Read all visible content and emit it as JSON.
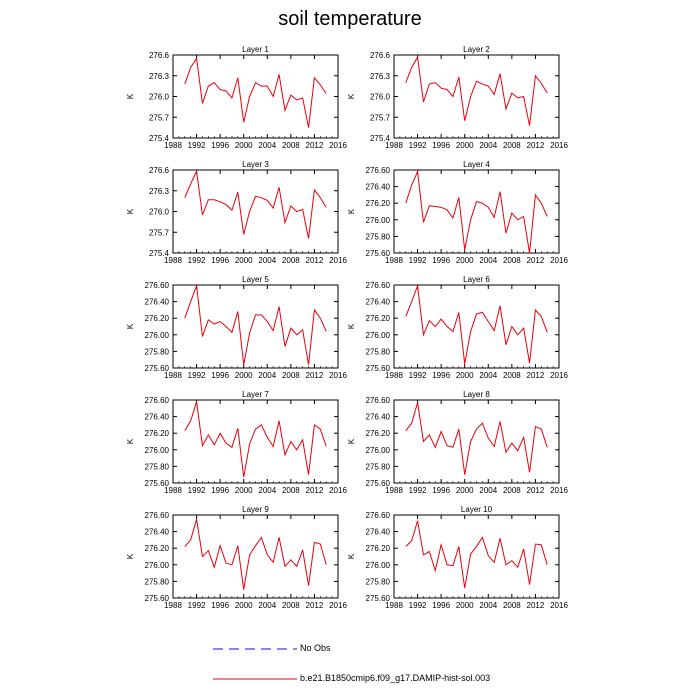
{
  "title": "soil temperature",
  "colors": {
    "series": "#e8000b",
    "obs": "#1010c8",
    "axis": "#000000"
  },
  "legend": {
    "obs_label": "No Obs",
    "model_label": "b.e21.B1850cmip6.f09_g17.DAMIP-hist-sol.003"
  },
  "chart_data": [
    {
      "type": "line",
      "title": "Layer 1",
      "ylabel": "K",
      "xlim": [
        1988,
        2016
      ],
      "ylim": [
        275.4,
        276.6
      ],
      "xticks": [
        1988,
        1992,
        1996,
        2000,
        2004,
        2008,
        2012,
        2016
      ],
      "yticks": [
        "275.4",
        "275.7",
        "276.0",
        "276.3",
        "276.6"
      ],
      "x": [
        1990,
        1991,
        1992,
        1993,
        1994,
        1995,
        1996,
        1997,
        1998,
        1999,
        2000,
        2001,
        2002,
        2003,
        2004,
        2005,
        2006,
        2007,
        2008,
        2009,
        2010,
        2011,
        2012,
        2013,
        2014
      ],
      "series": [
        {
          "values": [
            276.18,
            276.42,
            276.55,
            275.9,
            276.15,
            276.2,
            276.1,
            276.08,
            275.98,
            276.27,
            275.63,
            276.0,
            276.2,
            276.15,
            276.15,
            276.0,
            276.32,
            275.8,
            276.02,
            275.95,
            275.98,
            275.55,
            276.27,
            276.17,
            276.04
          ]
        }
      ]
    },
    {
      "type": "line",
      "title": "Layer 2",
      "ylabel": "K",
      "xlim": [
        1988,
        2016
      ],
      "ylim": [
        275.4,
        276.6
      ],
      "xticks": [
        1988,
        1992,
        1996,
        2000,
        2004,
        2008,
        2012,
        2016
      ],
      "yticks": [
        "275.4",
        "275.7",
        "276.0",
        "276.3",
        "276.6"
      ],
      "x": [
        1990,
        1991,
        1992,
        1993,
        1994,
        1995,
        1996,
        1997,
        1998,
        1999,
        2000,
        2001,
        2002,
        2003,
        2004,
        2005,
        2006,
        2007,
        2008,
        2009,
        2010,
        2011,
        2012,
        2013,
        2014
      ],
      "series": [
        {
          "values": [
            276.2,
            276.42,
            276.57,
            275.92,
            276.18,
            276.2,
            276.12,
            276.1,
            276.0,
            276.28,
            275.65,
            276.0,
            276.22,
            276.18,
            276.15,
            276.03,
            276.33,
            275.82,
            276.05,
            275.98,
            276.0,
            275.58,
            276.3,
            276.19,
            276.05
          ]
        }
      ]
    },
    {
      "type": "line",
      "title": "Layer 3",
      "ylabel": "K",
      "xlim": [
        1988,
        2016
      ],
      "ylim": [
        275.4,
        276.6
      ],
      "xticks": [
        1988,
        1992,
        1996,
        2000,
        2004,
        2008,
        2012,
        2016
      ],
      "yticks": [
        "275.4",
        "275.7",
        "276.0",
        "276.3",
        "276.6"
      ],
      "x": [
        1990,
        1991,
        1992,
        1993,
        1994,
        1995,
        1996,
        1997,
        1998,
        1999,
        2000,
        2001,
        2002,
        2003,
        2004,
        2005,
        2006,
        2007,
        2008,
        2009,
        2010,
        2011,
        2012,
        2013,
        2014
      ],
      "series": [
        {
          "values": [
            276.2,
            276.4,
            276.58,
            275.95,
            276.17,
            276.17,
            276.14,
            276.1,
            276.02,
            276.28,
            275.67,
            276.0,
            276.22,
            276.2,
            276.16,
            276.05,
            276.35,
            275.84,
            276.08,
            276.0,
            276.03,
            275.61,
            276.31,
            276.2,
            276.06
          ]
        }
      ]
    },
    {
      "type": "line",
      "title": "Layer 4",
      "ylabel": "K",
      "xlim": [
        1988,
        2016
      ],
      "ylim": [
        275.6,
        276.6
      ],
      "xticks": [
        1988,
        1992,
        1996,
        2000,
        2004,
        2008,
        2012,
        2016
      ],
      "yticks": [
        "275.60",
        "275.80",
        "276.00",
        "276.20",
        "276.40",
        "276.60"
      ],
      "x": [
        1990,
        1991,
        1992,
        1993,
        1994,
        1995,
        1996,
        1997,
        1998,
        1999,
        2000,
        2001,
        2002,
        2003,
        2004,
        2005,
        2006,
        2007,
        2008,
        2009,
        2010,
        2011,
        2012,
        2013,
        2014
      ],
      "series": [
        {
          "values": [
            276.2,
            276.42,
            276.58,
            275.97,
            276.17,
            276.16,
            276.15,
            276.12,
            276.02,
            276.27,
            275.64,
            276.0,
            276.22,
            276.2,
            276.15,
            276.03,
            276.34,
            275.84,
            276.08,
            276.0,
            276.04,
            275.6,
            276.3,
            276.2,
            276.04
          ]
        }
      ]
    },
    {
      "type": "line",
      "title": "Layer 5",
      "ylabel": "K",
      "xlim": [
        1988,
        2016
      ],
      "ylim": [
        275.6,
        276.6
      ],
      "xticks": [
        1988,
        1992,
        1996,
        2000,
        2004,
        2008,
        2012,
        2016
      ],
      "yticks": [
        "275.60",
        "275.80",
        "276.00",
        "276.20",
        "276.40",
        "276.60"
      ],
      "x": [
        1990,
        1991,
        1992,
        1993,
        1994,
        1995,
        1996,
        1997,
        1998,
        1999,
        2000,
        2001,
        2002,
        2003,
        2004,
        2005,
        2006,
        2007,
        2008,
        2009,
        2010,
        2011,
        2012,
        2013,
        2014
      ],
      "series": [
        {
          "values": [
            276.2,
            276.4,
            276.59,
            275.98,
            276.18,
            276.13,
            276.16,
            276.1,
            276.03,
            276.28,
            275.64,
            276.02,
            276.24,
            276.24,
            276.16,
            276.05,
            276.34,
            275.86,
            276.08,
            276.0,
            276.06,
            275.64,
            276.3,
            276.2,
            276.04
          ]
        }
      ]
    },
    {
      "type": "line",
      "title": "Layer 6",
      "ylabel": "K",
      "xlim": [
        1988,
        2016
      ],
      "ylim": [
        275.6,
        276.6
      ],
      "xticks": [
        1988,
        1992,
        1996,
        2000,
        2004,
        2008,
        2012,
        2016
      ],
      "yticks": [
        "275.60",
        "275.80",
        "276.00",
        "276.20",
        "276.40",
        "276.60"
      ],
      "x": [
        1990,
        1991,
        1992,
        1993,
        1994,
        1995,
        1996,
        1997,
        1998,
        1999,
        2000,
        2001,
        2002,
        2003,
        2004,
        2005,
        2006,
        2007,
        2008,
        2009,
        2010,
        2011,
        2012,
        2013,
        2014
      ],
      "series": [
        {
          "values": [
            276.22,
            276.4,
            276.59,
            276.0,
            276.17,
            276.1,
            276.19,
            276.1,
            276.04,
            276.27,
            275.65,
            276.04,
            276.25,
            276.27,
            276.16,
            276.05,
            276.35,
            275.88,
            276.1,
            276.0,
            276.08,
            275.66,
            276.3,
            276.22,
            276.03
          ]
        }
      ]
    },
    {
      "type": "line",
      "title": "Layer 7",
      "ylabel": "K",
      "xlim": [
        1988,
        2016
      ],
      "ylim": [
        275.6,
        276.6
      ],
      "xticks": [
        1988,
        1992,
        1996,
        2000,
        2004,
        2008,
        2012,
        2016
      ],
      "yticks": [
        "275.60",
        "275.80",
        "276.00",
        "276.20",
        "276.40",
        "276.60"
      ],
      "x": [
        1990,
        1991,
        1992,
        1993,
        1994,
        1995,
        1996,
        1997,
        1998,
        1999,
        2000,
        2001,
        2002,
        2003,
        2004,
        2005,
        2006,
        2007,
        2008,
        2009,
        2010,
        2011,
        2012,
        2013,
        2014
      ],
      "series": [
        {
          "values": [
            276.23,
            276.35,
            276.58,
            276.05,
            276.18,
            276.06,
            276.2,
            276.08,
            276.03,
            276.26,
            275.67,
            276.07,
            276.25,
            276.3,
            276.15,
            276.04,
            276.35,
            275.94,
            276.1,
            276.0,
            276.12,
            275.7,
            276.3,
            276.25,
            276.04
          ]
        }
      ]
    },
    {
      "type": "line",
      "title": "Layer 8",
      "ylabel": "K",
      "xlim": [
        1988,
        2016
      ],
      "ylim": [
        275.6,
        276.6
      ],
      "xticks": [
        1988,
        1992,
        1996,
        2000,
        2004,
        2008,
        2012,
        2016
      ],
      "yticks": [
        "275.60",
        "275.80",
        "276.00",
        "276.20",
        "276.40",
        "276.60"
      ],
      "x": [
        1990,
        1991,
        1992,
        1993,
        1994,
        1995,
        1996,
        1997,
        1998,
        1999,
        2000,
        2001,
        2002,
        2003,
        2004,
        2005,
        2006,
        2007,
        2008,
        2009,
        2010,
        2011,
        2012,
        2013,
        2014
      ],
      "series": [
        {
          "values": [
            276.23,
            276.32,
            276.57,
            276.1,
            276.18,
            276.03,
            276.22,
            276.05,
            276.03,
            276.25,
            275.7,
            276.1,
            276.25,
            276.32,
            276.14,
            276.04,
            276.34,
            275.97,
            276.08,
            275.99,
            276.15,
            275.73,
            276.28,
            276.25,
            276.03
          ]
        }
      ]
    },
    {
      "type": "line",
      "title": "Layer 9",
      "ylabel": "K",
      "xlim": [
        1988,
        2016
      ],
      "ylim": [
        275.6,
        276.6
      ],
      "xticks": [
        1988,
        1992,
        1996,
        2000,
        2004,
        2008,
        2012,
        2016
      ],
      "yticks": [
        "275.60",
        "275.80",
        "276.00",
        "276.20",
        "276.40",
        "276.60"
      ],
      "x": [
        1990,
        1991,
        1992,
        1993,
        1994,
        1995,
        1996,
        1997,
        1998,
        1999,
        2000,
        2001,
        2002,
        2003,
        2004,
        2005,
        2006,
        2007,
        2008,
        2009,
        2010,
        2011,
        2012,
        2013,
        2014
      ],
      "series": [
        {
          "values": [
            276.22,
            276.3,
            276.55,
            276.1,
            276.17,
            275.97,
            276.23,
            276.02,
            276.0,
            276.23,
            275.7,
            276.12,
            276.23,
            276.33,
            276.12,
            276.03,
            276.33,
            275.98,
            276.06,
            275.98,
            276.18,
            275.75,
            276.27,
            276.25,
            276.0
          ]
        }
      ]
    },
    {
      "type": "line",
      "title": "Layer 10",
      "ylabel": "K",
      "xlim": [
        1988,
        2016
      ],
      "ylim": [
        275.6,
        276.6
      ],
      "xticks": [
        1988,
        1992,
        1996,
        2000,
        2004,
        2008,
        2012,
        2016
      ],
      "yticks": [
        "275.60",
        "275.80",
        "276.00",
        "276.20",
        "276.40",
        "276.60"
      ],
      "x": [
        1990,
        1991,
        1992,
        1993,
        1994,
        1995,
        1996,
        1997,
        1998,
        1999,
        2000,
        2001,
        2002,
        2003,
        2004,
        2005,
        2006,
        2007,
        2008,
        2009,
        2010,
        2011,
        2012,
        2013,
        2014
      ],
      "series": [
        {
          "values": [
            276.22,
            276.29,
            276.53,
            276.12,
            276.16,
            275.93,
            276.24,
            276.0,
            275.99,
            276.22,
            275.72,
            276.13,
            276.22,
            276.33,
            276.11,
            276.03,
            276.32,
            276.0,
            276.05,
            275.97,
            276.19,
            275.76,
            276.25,
            276.24,
            276.0
          ]
        }
      ]
    }
  ]
}
